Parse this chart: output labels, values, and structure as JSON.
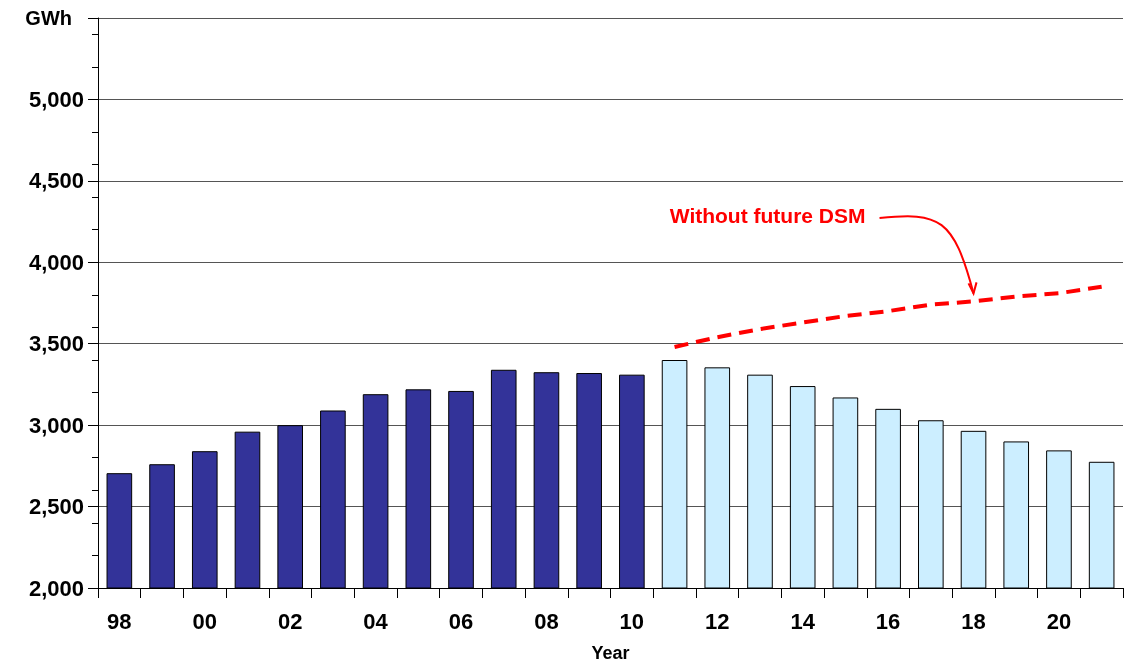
{
  "chart_data": {
    "type": "bar",
    "xlabel": "Year",
    "ylabel": "GWh",
    "categories": [
      "98",
      null,
      "00",
      null,
      "02",
      null,
      "04",
      null,
      "06",
      null,
      "08",
      null,
      "10",
      null,
      "12",
      null,
      "14",
      null,
      "16",
      null,
      "18",
      null,
      "20",
      null
    ],
    "series": [
      {
        "colors": [
          "#333399",
          "#333399",
          "#333399",
          "#333399",
          "#333399",
          "#333399",
          "#333399",
          "#333399",
          "#333399",
          "#333399",
          "#333399",
          "#333399",
          "#333399",
          "#cceeff",
          "#cceeff",
          "#cceeff",
          "#cceeff",
          "#cceeff",
          "#cceeff",
          "#cceeff",
          "#cceeff",
          "#cceeff",
          "#cceeff",
          "#cceeff"
        ],
        "values": [
          2705,
          2760,
          2840,
          2960,
          3000,
          3090,
          3190,
          3220,
          3210,
          3340,
          3325,
          3320,
          3310,
          3400,
          3355,
          3310,
          3240,
          3170,
          3100,
          3030,
          2965,
          2900,
          2845,
          2775
        ]
      },
      {
        "type": "line",
        "name": "Without future DSM",
        "color": "#ff0000",
        "line_style": "dashed",
        "marker": "none",
        "values": [
          null,
          null,
          null,
          null,
          null,
          null,
          null,
          null,
          null,
          null,
          null,
          null,
          null,
          3480,
          3540,
          3590,
          3630,
          3670,
          3700,
          3740,
          3760,
          3790,
          3810,
          3850
        ]
      }
    ],
    "ylim": [
      2000,
      5500
    ],
    "yticks": [
      {
        "value": 2000,
        "label": "2,000"
      },
      {
        "value": 2500,
        "label": "2,500"
      },
      {
        "value": 3000,
        "label": "3,000"
      },
      {
        "value": 3500,
        "label": "3,500"
      },
      {
        "value": 4000,
        "label": "4,000"
      },
      {
        "value": 4500,
        "label": "4,500"
      },
      {
        "value": 5000,
        "label": "5,000"
      },
      {
        "value": 5500,
        "label": null
      }
    ],
    "grid": "y",
    "legend": false
  }
}
